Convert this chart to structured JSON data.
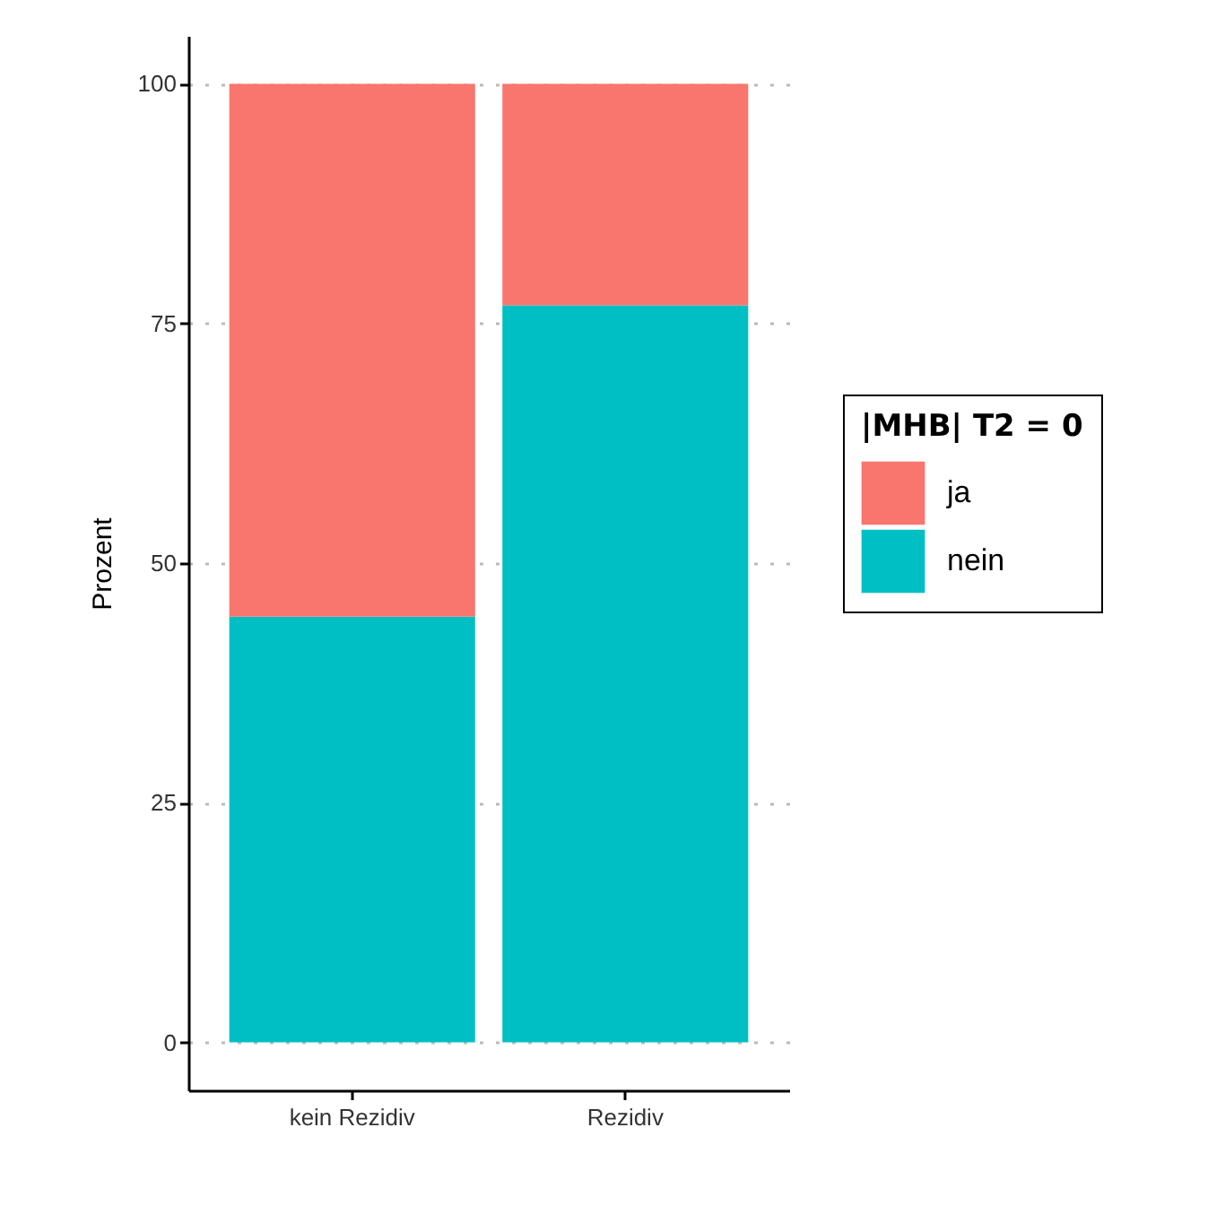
{
  "chart_data": {
    "type": "bar",
    "ylabel": "Prozent",
    "legend_title": "|MHB| T2 = 0",
    "categories": [
      "kein Rezidiv",
      "Rezidiv"
    ],
    "stacked": true,
    "series": [
      {
        "name": "nein",
        "color": "#00bfc4",
        "values": [
          44.4,
          76.9
        ]
      },
      {
        "name": "ja",
        "color": "#f8766d",
        "values": [
          55.6,
          23.1
        ]
      }
    ],
    "ylim": [
      -5,
      105
    ],
    "yticks": [
      0,
      25,
      50,
      75,
      100
    ],
    "grid": "y",
    "legend": "right"
  }
}
